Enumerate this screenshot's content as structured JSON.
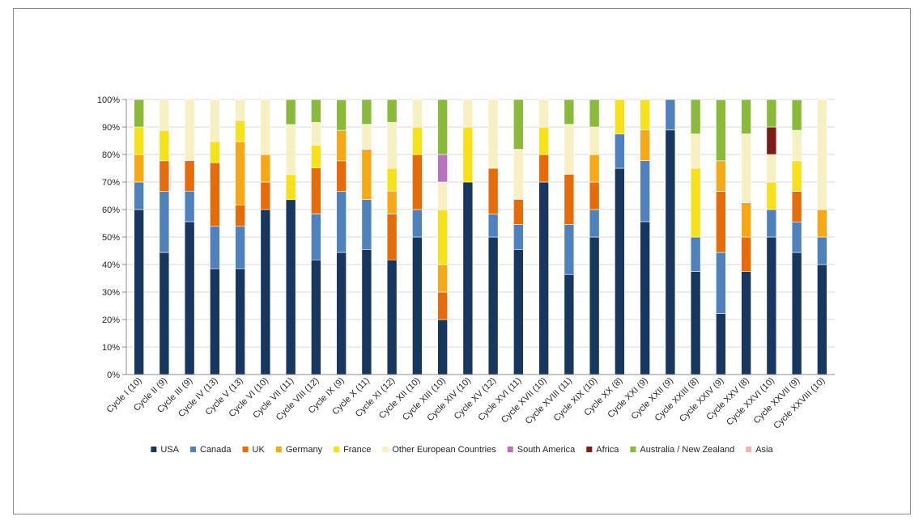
{
  "chart_data": {
    "type": "bar",
    "stacked": true,
    "percent": true,
    "title": "",
    "xlabel": "",
    "ylabel": "",
    "ylim": [
      0,
      100
    ],
    "yticks": [
      "0%",
      "10%",
      "20%",
      "30%",
      "40%",
      "50%",
      "60%",
      "70%",
      "80%",
      "90%",
      "100%"
    ],
    "grid": true,
    "legend_position": "bottom",
    "categories": [
      "Cycle I (10)",
      "Cycle II (9)",
      "Cycle III (9)",
      "Cycle IV (13)",
      "Cycle V (13)",
      "Cycle VI (10)",
      "Cycle VII (11)",
      "Cycle VIII (12)",
      "Cycle IX (9)",
      "Cycle X (11)",
      "Cycle XI (12)",
      "Cycle XII (10)",
      "Cycle XIII (10)",
      "Cycle XIV (10)",
      "Cycle XV (12)",
      "Cycle XVI (11)",
      "Cycle XVII (10)",
      "Cycle XVIII (11)",
      "Cycle XIX (10)",
      "Cycle XX (8)",
      "Cycle XXI (9)",
      "Cycle XXII (9)",
      "Cycle XXIII (8)",
      "Cycle XXIV (9)",
      "Cycle XXV (8)",
      "Cycle XXVI (10)",
      "Cycle XXVII (9)",
      "Cycle XXVIII (10)"
    ],
    "series": [
      {
        "name": "USA",
        "color": "#17375e",
        "values": [
          60,
          44.4,
          55.6,
          38.5,
          38.5,
          60,
          63.6,
          41.7,
          44.4,
          45.5,
          41.7,
          50,
          20,
          70,
          50,
          45.5,
          70,
          36.4,
          50,
          75,
          55.6,
          88.9,
          37.5,
          22.2,
          37.5,
          50,
          44.4,
          40
        ]
      },
      {
        "name": "Canada",
        "color": "#4f81bd",
        "values": [
          10,
          22.2,
          11.1,
          15.4,
          15.4,
          0,
          0,
          16.7,
          22.2,
          18.2,
          0,
          10,
          0,
          0,
          8.3,
          9.1,
          0,
          18.2,
          10,
          12.5,
          22.2,
          11.1,
          12.5,
          22.2,
          0,
          10,
          11.1,
          10
        ]
      },
      {
        "name": "UK",
        "color": "#e46c0a",
        "values": [
          0,
          11.1,
          11.1,
          23.1,
          7.7,
          10,
          0,
          16.7,
          11.1,
          0,
          16.7,
          20,
          10,
          0,
          16.7,
          9.1,
          10,
          18.2,
          10,
          0,
          0,
          0,
          0,
          22.2,
          12.5,
          0,
          11.1,
          0
        ]
      },
      {
        "name": "Germany",
        "color": "#f5a818",
        "values": [
          10,
          0,
          0,
          0,
          23.1,
          10,
          0,
          0,
          11.1,
          18.2,
          8.3,
          0,
          10,
          0,
          0,
          0,
          0,
          0,
          10,
          0,
          11.1,
          0,
          0,
          11.1,
          12.5,
          0,
          0,
          10
        ]
      },
      {
        "name": "France",
        "color": "#f7e11a",
        "values": [
          10,
          11.1,
          0,
          7.7,
          7.7,
          0,
          9.1,
          8.3,
          0,
          0,
          8.3,
          10,
          20,
          20,
          0,
          0,
          10,
          0,
          0,
          12.5,
          11.1,
          0,
          25,
          0,
          0,
          10,
          11.1,
          0
        ]
      },
      {
        "name": "Other European Countries",
        "color": "#f7f0c2",
        "values": [
          0,
          11.1,
          22.2,
          15.4,
          7.7,
          20,
          18.2,
          8.3,
          0,
          9.1,
          16.7,
          10,
          10,
          10,
          25,
          18.2,
          10,
          18.2,
          10,
          0,
          0,
          0,
          12.5,
          0,
          25,
          10,
          11.1,
          40
        ]
      },
      {
        "name": "South America",
        "color": "#b772c0",
        "values": [
          0,
          0,
          0,
          0,
          0,
          0,
          0,
          0,
          0,
          0,
          0,
          0,
          10,
          0,
          0,
          0,
          0,
          0,
          0,
          0,
          0,
          0,
          0,
          0,
          0,
          0,
          0,
          0
        ]
      },
      {
        "name": "Africa",
        "color": "#7b1d18",
        "values": [
          0,
          0,
          0,
          0,
          0,
          0,
          0,
          0,
          0,
          0,
          0,
          0,
          0,
          0,
          0,
          0,
          0,
          0,
          0,
          0,
          0,
          0,
          0,
          0,
          0,
          10,
          0,
          0
        ]
      },
      {
        "name": "Australia / New Zealand",
        "color": "#8bb93c",
        "values": [
          10,
          0,
          0,
          0,
          0,
          0,
          9.1,
          8.3,
          11.1,
          9.1,
          8.3,
          0,
          20,
          0,
          0,
          18.2,
          0,
          9.1,
          10,
          0,
          0,
          0,
          12.5,
          22.2,
          12.5,
          10,
          11.1,
          0
        ]
      },
      {
        "name": "Asia",
        "color": "#f2b3b3",
        "values": [
          0,
          0,
          0,
          0,
          0,
          0,
          0,
          0,
          0,
          0,
          0,
          0,
          0,
          0,
          0,
          0,
          0,
          0,
          0,
          0,
          0,
          0,
          0,
          0,
          0,
          0,
          0,
          0
        ]
      }
    ]
  }
}
